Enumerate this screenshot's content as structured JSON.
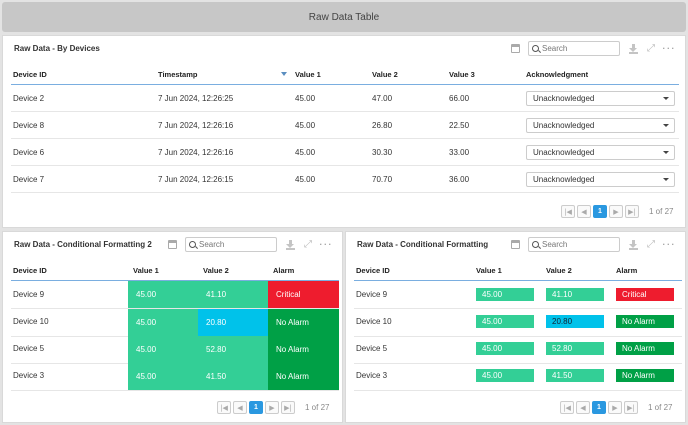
{
  "page": {
    "title": "Raw Data Table"
  },
  "colors": {
    "green": "#33cf96",
    "cyan": "#00c2ea",
    "red": "#ee1c2e",
    "dark_green": "#00a046",
    "accent": "#2a98e0"
  },
  "search_placeholder": "Search",
  "panel_top": {
    "title": "Raw Data - By Devices",
    "columns": [
      "Device ID",
      "Timestamp",
      "Value 1",
      "Value 2",
      "Value 3",
      "Acknowledgment"
    ],
    "rows": [
      {
        "device": "Device 2",
        "timestamp": "7 Jun 2024, 12:26:25",
        "v1": "45.00",
        "v2": "47.00",
        "v3": "66.00",
        "ack": "Unacknowledged"
      },
      {
        "device": "Device 8",
        "timestamp": "7 Jun 2024, 12:26:16",
        "v1": "45.00",
        "v2": "26.80",
        "v3": "22.50",
        "ack": "Unacknowledged"
      },
      {
        "device": "Device 6",
        "timestamp": "7 Jun 2024, 12:26:16",
        "v1": "45.00",
        "v2": "30.30",
        "v3": "33.00",
        "ack": "Unacknowledged"
      },
      {
        "device": "Device 7",
        "timestamp": "7 Jun 2024, 12:26:15",
        "v1": "45.00",
        "v2": "70.70",
        "v3": "36.00",
        "ack": "Unacknowledged"
      }
    ],
    "pager": {
      "current": "1",
      "of": "1 of 27"
    }
  },
  "panel_left": {
    "title": "Raw Data - Conditional Formatting 2",
    "columns": [
      "Device ID",
      "Value 1",
      "Value 2",
      "Alarm"
    ],
    "rows": [
      {
        "device": "Device 9",
        "v1": "45.00",
        "v2": "41.10",
        "alarm": "Critical"
      },
      {
        "device": "Device 10",
        "v1": "45.00",
        "v2": "20.80",
        "alarm": "No Alarm"
      },
      {
        "device": "Device 5",
        "v1": "45.00",
        "v2": "52.80",
        "alarm": "No Alarm"
      },
      {
        "device": "Device 3",
        "v1": "45.00",
        "v2": "41.50",
        "alarm": "No Alarm"
      }
    ],
    "pager": {
      "current": "1",
      "of": "1 of 27"
    }
  },
  "panel_right": {
    "title": "Raw Data - Conditional Formatting",
    "columns": [
      "Device ID",
      "Value 1",
      "Value 2",
      "Alarm"
    ],
    "rows": [
      {
        "device": "Device 9",
        "v1": "45.00",
        "v2": "41.10",
        "alarm": "Critical"
      },
      {
        "device": "Device 10",
        "v1": "45.00",
        "v2": "20.80",
        "alarm": "No Alarm"
      },
      {
        "device": "Device 5",
        "v1": "45.00",
        "v2": "52.80",
        "alarm": "No Alarm"
      },
      {
        "device": "Device 3",
        "v1": "45.00",
        "v2": "41.50",
        "alarm": "No Alarm"
      }
    ],
    "pager": {
      "current": "1",
      "of": "1 of 27"
    }
  }
}
